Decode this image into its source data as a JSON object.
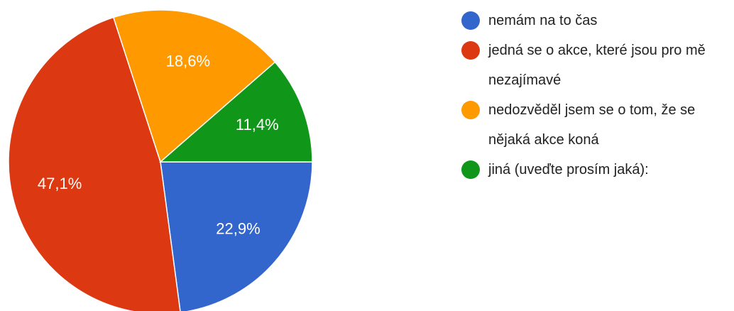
{
  "chart_data": {
    "type": "pie",
    "categories": [
      "nemám na to čas",
      "jedná se o akce, které jsou pro mě nezajímavé",
      "nedozvěděl jsem se o tom, že se nějaká akce koná",
      "jiná (uveďte prosím jaká):"
    ],
    "values": [
      22.9,
      47.1,
      18.6,
      11.4
    ],
    "value_labels": [
      "22,9%",
      "47,1%",
      "18,6%",
      "11,4%"
    ],
    "colors": [
      "#3366cc",
      "#dc3912",
      "#ff9900",
      "#109618"
    ],
    "legend": "right"
  }
}
